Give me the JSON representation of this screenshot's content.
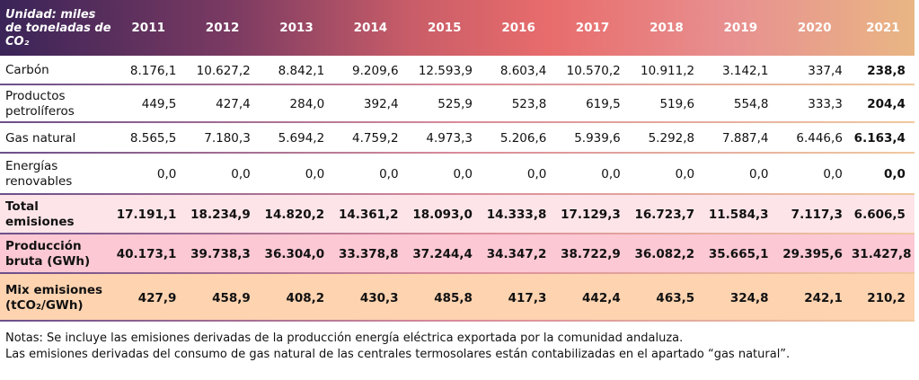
{
  "header": {
    "unit": "Unidad: miles de toneladas de CO₂",
    "years": [
      "2011",
      "2012",
      "2013",
      "2014",
      "2015",
      "2016",
      "2017",
      "2018",
      "2019",
      "2020",
      "2021"
    ]
  },
  "rows": [
    {
      "label": "Carbón",
      "values": [
        "8.176,1",
        "10.627,2",
        "8.842,1",
        "9.209,6",
        "12.593,9",
        "8.603,4",
        "10.570,2",
        "10.911,2",
        "3.142,1",
        "337,4",
        "238,8"
      ]
    },
    {
      "label": "Productos petrolíferos",
      "values": [
        "449,5",
        "427,4",
        "284,0",
        "392,4",
        "525,9",
        "523,8",
        "619,5",
        "519,6",
        "554,8",
        "333,3",
        "204,4"
      ]
    },
    {
      "label": "Gas natural",
      "values": [
        "8.565,5",
        "7.180,3",
        "5.694,2",
        "4.759,2",
        "4.973,3",
        "5.206,6",
        "5.939,6",
        "5.292,8",
        "7.887,4",
        "6.446,6",
        "6.163,4"
      ]
    },
    {
      "label": "Energías renovables",
      "values": [
        "0,0",
        "0,0",
        "0,0",
        "0,0",
        "0,0",
        "0,0",
        "0,0",
        "0,0",
        "0,0",
        "0,0",
        "0,0"
      ]
    },
    {
      "label": "Total emisiones",
      "values": [
        "17.191,1",
        "18.234,9",
        "14.820,2",
        "14.361,2",
        "18.093,0",
        "14.333,8",
        "17.129,3",
        "16.723,7",
        "11.584,3",
        "7.117,3",
        "6.606,5"
      ]
    },
    {
      "label": "Producción bruta (GWh)",
      "values": [
        "40.173,1",
        "39.738,3",
        "36.304,0",
        "33.378,8",
        "37.244,4",
        "34.347,2",
        "38.722,9",
        "36.082,2",
        "35.665,1",
        "29.395,6",
        "31.427,8"
      ]
    },
    {
      "label": "Mix emisiones (tCO₂/GWh)",
      "values": [
        "427,9",
        "458,9",
        "408,2",
        "430,3",
        "485,8",
        "417,3",
        "442,4",
        "463,5",
        "324,8",
        "242,1",
        "210,2"
      ]
    }
  ],
  "notes": [
    "Notas: Se incluye las emisiones derivadas de la producción energía eléctrica exportada por la comunidad andaluza.",
    "Las emisiones derivadas del consumo de gas natural de las centrales termosolares están contabilizadas en el apartado “gas natural”."
  ]
}
